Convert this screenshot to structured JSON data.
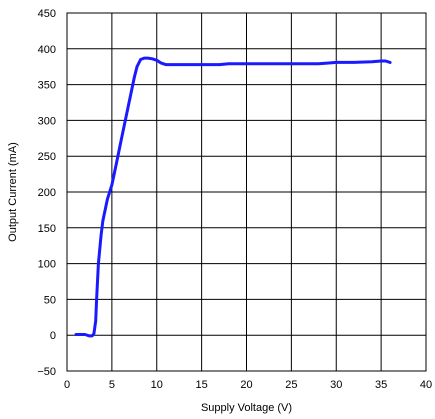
{
  "chart_data": {
    "type": "line",
    "title": "",
    "xlabel": "Supply Voltage (V)",
    "ylabel": "Output Current (mA)",
    "xlim": [
      0,
      40
    ],
    "ylim": [
      -50,
      450
    ],
    "xticks": [
      0,
      5,
      10,
      15,
      20,
      25,
      30,
      35,
      40
    ],
    "yticks": [
      -50,
      0,
      50,
      100,
      150,
      200,
      250,
      300,
      350,
      400,
      450
    ],
    "xtick_labels": [
      "0",
      "5",
      "10",
      "15",
      "20",
      "25",
      "30",
      "35",
      "40"
    ],
    "ytick_labels": [
      "−50",
      "0",
      "50",
      "100",
      "150",
      "200",
      "250",
      "300",
      "350",
      "400",
      "450"
    ],
    "grid": true,
    "legend": "none",
    "line_color": "#1a1aff",
    "series": [
      {
        "x": [
          1.0,
          2.0,
          2.5,
          2.8,
          3.0,
          3.2,
          3.3,
          3.5,
          3.8,
          4.0,
          4.5,
          5.0,
          5.5,
          6.0,
          6.5,
          7.0,
          7.5,
          7.8,
          8.2,
          8.6,
          9.0,
          9.5,
          10.0,
          10.5,
          11.0,
          13.0,
          15.0,
          17.0,
          18.0,
          20.0,
          23.0,
          25.0,
          28.0,
          29.0,
          30.0,
          32.0,
          34.0,
          35.0,
          35.5,
          36.0
        ],
        "y": [
          1,
          1,
          -1,
          -1,
          2,
          20,
          50,
          100,
          140,
          160,
          190,
          210,
          240,
          270,
          300,
          330,
          360,
          375,
          385,
          387,
          387,
          386,
          384,
          380,
          378,
          378,
          378,
          378,
          379,
          379,
          379,
          379,
          379,
          380,
          381,
          381,
          382,
          383,
          383,
          381
        ]
      }
    ]
  }
}
